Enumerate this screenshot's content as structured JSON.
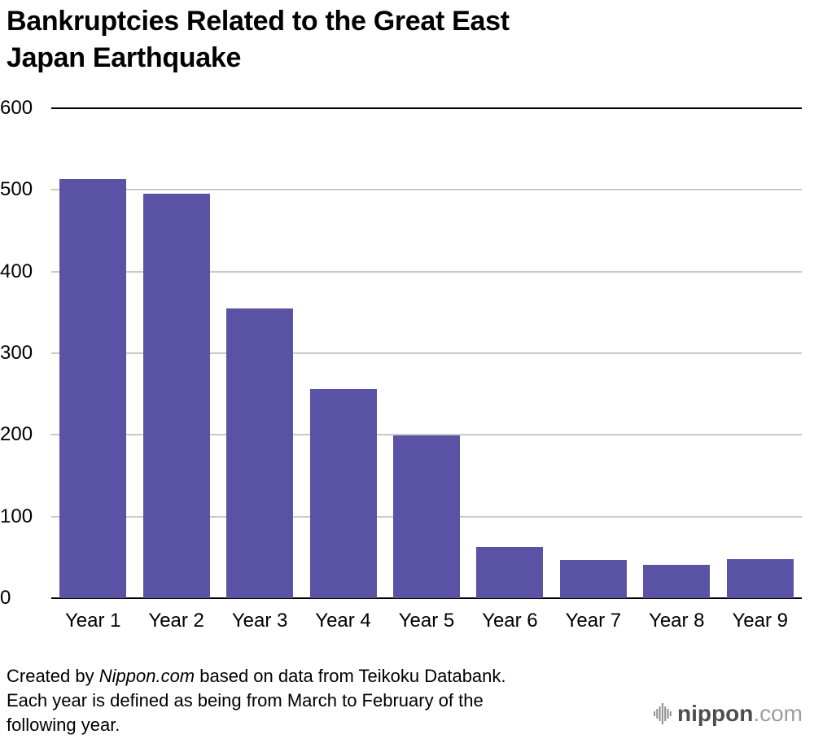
{
  "title": {
    "lines": [
      "Bankruptcies Related to the Great East",
      "Japan Earthquake"
    ]
  },
  "chart_data": {
    "type": "bar",
    "title": "Bankruptcies Related to the Great East Japan Earthquake",
    "categories": [
      "Year 1",
      "Year 2",
      "Year 3",
      "Year 4",
      "Year 5",
      "Year 6",
      "Year 7",
      "Year 8",
      "Year 9"
    ],
    "values": [
      513,
      495,
      355,
      256,
      199,
      63,
      47,
      41,
      48
    ],
    "xlabel": "",
    "ylabel": "",
    "ylim": [
      0,
      600
    ],
    "yticks": [
      0,
      100,
      200,
      300,
      400,
      500,
      600
    ],
    "grid": true,
    "legend": false,
    "bar_color": "#5a52a5",
    "grid_color": "#c9c9c9",
    "axis_color": "#000000"
  },
  "footer": {
    "line1_prefix": "Created by ",
    "line1_italic": "Nippon.com",
    "line1_suffix": " based on data from Teikoku Databank.",
    "line2": "Each year is defined as being from March to February of the",
    "line3": "following year."
  },
  "logo": {
    "icon": "soundwave-icon",
    "name": "nippon",
    "tld": ".com",
    "name_color": "#4d4d4d",
    "tld_color": "#9e9e9e",
    "icon_color": "#8f8f8f"
  }
}
